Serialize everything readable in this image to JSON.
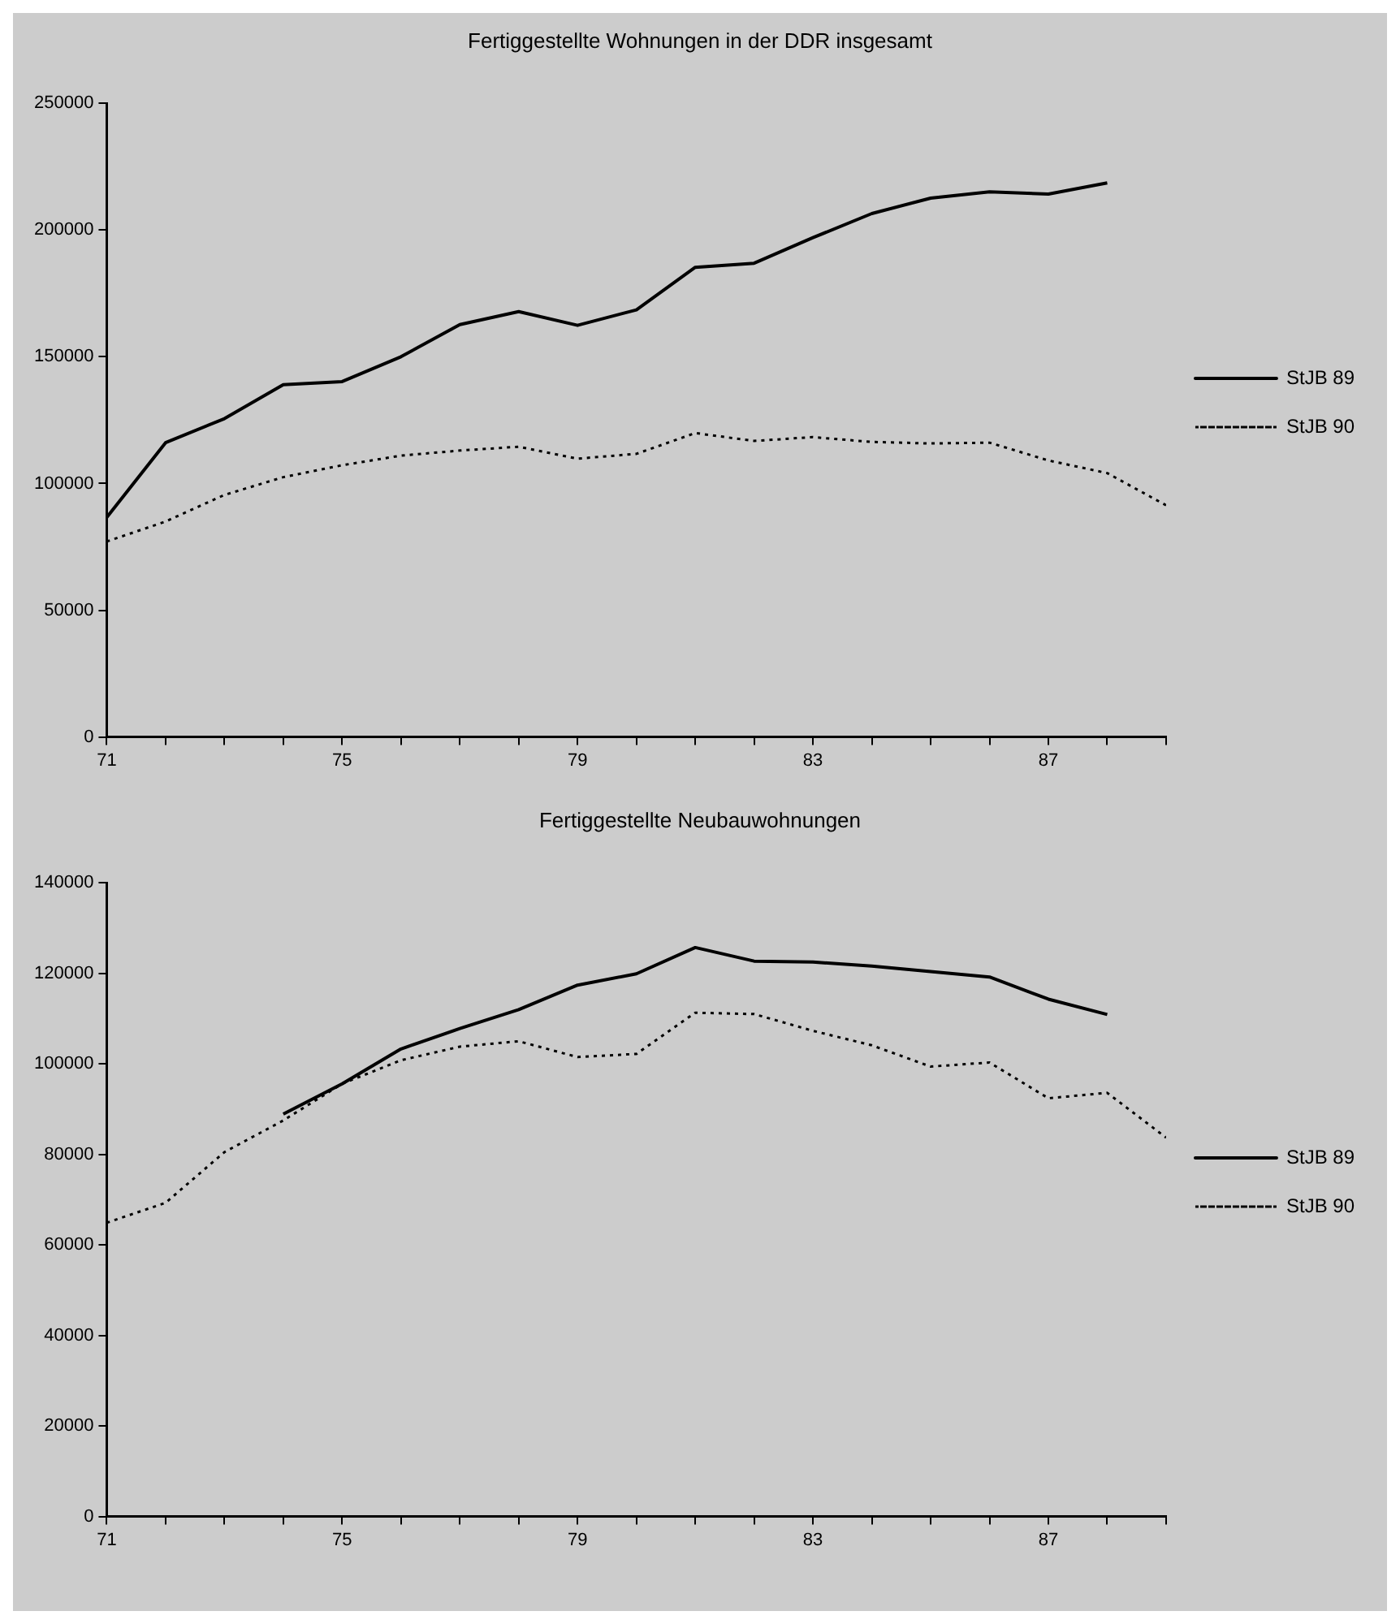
{
  "chart_data": [
    {
      "type": "line",
      "title": "Fertiggestellte Wohnungen in der DDR insgesamt",
      "x": [
        71,
        72,
        73,
        74,
        75,
        76,
        77,
        78,
        79,
        80,
        81,
        82,
        83,
        84,
        85,
        86,
        87,
        88,
        89
      ],
      "series": [
        {
          "name": "StJB 89",
          "color": "#000000",
          "line_style": "solid",
          "x": [
            71,
            72,
            73,
            74,
            75,
            76,
            77,
            78,
            79,
            80,
            81,
            82,
            83,
            84,
            85,
            86,
            87,
            88
          ],
          "values": [
            86600,
            116100,
            125600,
            139000,
            140200,
            150000,
            162700,
            167800,
            162400,
            168500,
            185300,
            186900,
            197000,
            206500,
            212600,
            215100,
            214200,
            218600
          ]
        },
        {
          "name": "StJB 90",
          "color": "#000000",
          "line_style": "dotted",
          "values": [
            77100,
            85000,
            95500,
            102500,
            107200,
            111000,
            113000,
            114500,
            109800,
            111700,
            119900,
            116800,
            118300,
            116400,
            115800,
            116100,
            109100,
            104100,
            91400
          ]
        }
      ],
      "xlim": [
        71,
        89
      ],
      "xticks": [
        71,
        {
          "value": 72,
          "label": null
        },
        {
          "value": 73,
          "label": null
        },
        {
          "value": 74,
          "label": null
        },
        75,
        {
          "value": 76,
          "label": null
        },
        {
          "value": 77,
          "label": null
        },
        {
          "value": 78,
          "label": null
        },
        79,
        {
          "value": 80,
          "label": null
        },
        {
          "value": 81,
          "label": null
        },
        {
          "value": 82,
          "label": null
        },
        83,
        {
          "value": 84,
          "label": null
        },
        {
          "value": 85,
          "label": null
        },
        {
          "value": 86,
          "label": null
        },
        87,
        {
          "value": 88,
          "label": null
        },
        {
          "value": 89,
          "label": null
        }
      ],
      "ylim": [
        0,
        250000
      ],
      "yticks": [
        0,
        50000,
        100000,
        150000,
        200000,
        250000
      ],
      "legend": "right",
      "marker": "none"
    },
    {
      "type": "line",
      "title": "Fertiggestellte Neubauwohnungen",
      "x": [
        71,
        72,
        73,
        74,
        75,
        76,
        77,
        78,
        79,
        80,
        81,
        82,
        83,
        84,
        85,
        86,
        87,
        88,
        89
      ],
      "series": [
        {
          "name": "StJB 89",
          "color": "#000000",
          "line_style": "solid",
          "x": [
            74,
            75,
            76,
            77,
            78,
            79,
            80,
            81,
            82,
            83,
            84,
            85,
            86,
            87,
            88
          ],
          "values": [
            88900,
            95600,
            103300,
            107800,
            112000,
            117400,
            119900,
            125700,
            122700,
            122500,
            121600,
            120400,
            119200,
            114300,
            110900
          ]
        },
        {
          "name": "StJB 90",
          "color": "#000000",
          "line_style": "dotted",
          "values": [
            64900,
            69300,
            80500,
            87500,
            95600,
            100800,
            103800,
            105000,
            101500,
            102200,
            111300,
            111000,
            107300,
            104100,
            99400,
            100300,
            92400,
            93600,
            83700
          ]
        }
      ],
      "xlim": [
        71,
        89
      ],
      "xticks": [
        71,
        {
          "value": 72,
          "label": null
        },
        {
          "value": 73,
          "label": null
        },
        {
          "value": 74,
          "label": null
        },
        75,
        {
          "value": 76,
          "label": null
        },
        {
          "value": 77,
          "label": null
        },
        {
          "value": 78,
          "label": null
        },
        79,
        {
          "value": 80,
          "label": null
        },
        {
          "value": 81,
          "label": null
        },
        {
          "value": 82,
          "label": null
        },
        83,
        {
          "value": 84,
          "label": null
        },
        {
          "value": 85,
          "label": null
        },
        {
          "value": 86,
          "label": null
        },
        87,
        {
          "value": 88,
          "label": null
        },
        {
          "value": 89,
          "label": null
        }
      ],
      "ylim": [
        0,
        140000
      ],
      "yticks": [
        0,
        20000,
        40000,
        60000,
        80000,
        100000,
        120000,
        140000
      ],
      "legend": "right",
      "marker": "none"
    }
  ]
}
